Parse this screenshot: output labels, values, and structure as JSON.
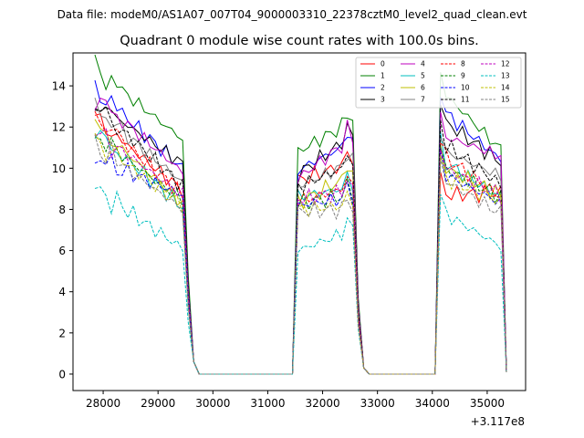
{
  "chart_data": {
    "type": "line",
    "suptitle": "Data file: modeM0/AS1A07_007T04_9000003310_22378cztM0_level2_quad_clean.evt",
    "title": "Quadrant 0 module wise count rates with 100.0s bins.",
    "xlabel": "",
    "ylabel": "",
    "x_offset_label": "+3.117e8",
    "xlim": [
      27450,
      35700
    ],
    "ylim": [
      -0.8,
      15.6
    ],
    "x_ticks": [
      28000,
      29000,
      30000,
      31000,
      32000,
      33000,
      34000,
      35000
    ],
    "x_tick_labels": [
      "28000",
      "29000",
      "30000",
      "31000",
      "32000",
      "33000",
      "34000",
      "35000"
    ],
    "y_ticks": [
      0,
      2,
      4,
      6,
      8,
      10,
      12,
      14
    ],
    "y_tick_labels": [
      "0",
      "2",
      "4",
      "6",
      "8",
      "10",
      "12",
      "14"
    ],
    "legend_position": "upper-right",
    "segments": [
      {
        "x_start": 27850,
        "x_end": 29450,
        "step": 100
      },
      {
        "x_start": 31550,
        "x_end": 32550,
        "step": 100
      },
      {
        "x_start": 34150,
        "x_end": 35250,
        "step": 100
      }
    ],
    "gap_fall": [
      29550,
      29650
    ],
    "flat_range": [
      29750,
      31450
    ],
    "series": [
      {
        "name": "0",
        "color": "#ff0000",
        "dash": "solid",
        "seg_start": [
          12.4,
          9.4,
          8.7
        ],
        "seg_end": [
          8.9,
          10.3,
          8.8
        ]
      },
      {
        "name": "1",
        "color": "#008000",
        "dash": "solid",
        "seg_start": [
          14.8,
          10.8,
          13.8
        ],
        "seg_end": [
          11.4,
          12.3,
          10.9
        ]
      },
      {
        "name": "2",
        "color": "#0000ff",
        "dash": "solid",
        "seg_start": [
          13.8,
          9.9,
          12.9
        ],
        "seg_end": [
          10.0,
          11.3,
          10.4
        ]
      },
      {
        "name": "3",
        "color": "#000000",
        "dash": "solid",
        "seg_start": [
          13.2,
          9.7,
          12.4
        ],
        "seg_end": [
          10.2,
          11.6,
          10.3
        ]
      },
      {
        "name": "4",
        "color": "#bf00bf",
        "dash": "solid",
        "seg_start": [
          13.5,
          9.5,
          11.6
        ],
        "seg_end": [
          9.8,
          11.5,
          10.6
        ]
      },
      {
        "name": "5",
        "color": "#00bfbf",
        "dash": "solid",
        "seg_start": [
          11.8,
          8.6,
          10.4
        ],
        "seg_end": [
          8.1,
          9.1,
          8.6
        ]
      },
      {
        "name": "6",
        "color": "#bfbf00",
        "dash": "solid",
        "seg_start": [
          12.1,
          8.3,
          10.1
        ],
        "seg_end": [
          8.3,
          9.7,
          8.7
        ]
      },
      {
        "name": "7",
        "color": "#808080",
        "dash": "solid",
        "seg_start": [
          12.9,
          9.1,
          10.9
        ],
        "seg_end": [
          9.3,
          10.3,
          9.6
        ]
      },
      {
        "name": "8",
        "color": "#ff0000",
        "dash": "dashed",
        "seg_start": [
          12.5,
          8.4,
          10.7
        ],
        "seg_end": [
          8.7,
          9.1,
          8.6
        ]
      },
      {
        "name": "9",
        "color": "#008000",
        "dash": "dashed",
        "seg_start": [
          11.6,
          8.3,
          10.1
        ],
        "seg_end": [
          8.4,
          8.7,
          8.6
        ]
      },
      {
        "name": "10",
        "color": "#0000ff",
        "dash": "dashed",
        "seg_start": [
          10.5,
          8.2,
          9.8
        ],
        "seg_end": [
          8.7,
          8.6,
          8.3
        ]
      },
      {
        "name": "11",
        "color": "#000000",
        "dash": "dashed",
        "seg_start": [
          13.1,
          9.1,
          11.3
        ],
        "seg_end": [
          9.1,
          10.2,
          9.2
        ]
      },
      {
        "name": "12",
        "color": "#bf00bf",
        "dash": "dashed",
        "seg_start": [
          11.8,
          8.5,
          10.1
        ],
        "seg_end": [
          8.7,
          8.9,
          8.7
        ]
      },
      {
        "name": "13",
        "color": "#00bfbf",
        "dash": "dashed",
        "seg_start": [
          9.0,
          6.0,
          7.9
        ],
        "seg_end": [
          6.1,
          7.0,
          6.2
        ]
      },
      {
        "name": "14",
        "color": "#bfbf00",
        "dash": "dashed",
        "seg_start": [
          11.3,
          8.0,
          9.6
        ],
        "seg_end": [
          8.2,
          8.2,
          8.4
        ]
      },
      {
        "name": "15",
        "color": "#808080",
        "dash": "dashed",
        "seg_start": [
          11.1,
          7.9,
          9.5
        ],
        "seg_end": [
          8.0,
          8.0,
          7.8
        ]
      }
    ]
  }
}
